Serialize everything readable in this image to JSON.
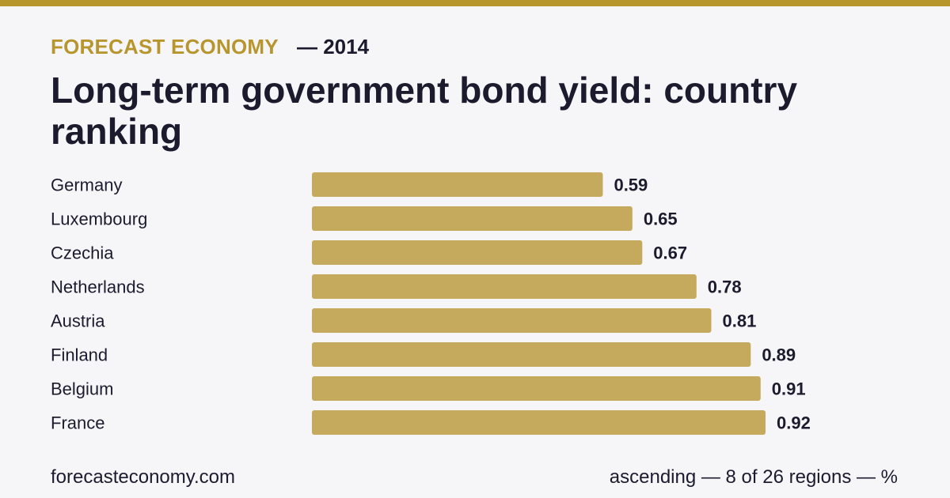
{
  "header": {
    "brand": "FORECAST ECONOMY",
    "year_label": "— 2014",
    "title": "Long-term government bond yield: country ranking"
  },
  "footer": {
    "site": "forecasteconomy.com",
    "note": "ascending — 8 of 26 regions — %"
  },
  "colors": {
    "accent": "#b8962e",
    "bar": "#c5a95c",
    "text": "#1c1b2e",
    "background": "#f6f6f9"
  },
  "chart_data": {
    "type": "bar",
    "orientation": "horizontal",
    "categories": [
      "Germany",
      "Luxembourg",
      "Czechia",
      "Netherlands",
      "Austria",
      "Finland",
      "Belgium",
      "France"
    ],
    "values": [
      0.59,
      0.65,
      0.67,
      0.78,
      0.81,
      0.89,
      0.91,
      0.92
    ],
    "value_labels": [
      "0.59",
      "0.65",
      "0.67",
      "0.78",
      "0.81",
      "0.89",
      "0.91",
      "0.92"
    ],
    "title": "Long-term government bond yield: country ranking",
    "xlabel": "",
    "ylabel": "",
    "xlim": [
      0,
      0.92
    ],
    "grid": false,
    "legend": "none"
  }
}
